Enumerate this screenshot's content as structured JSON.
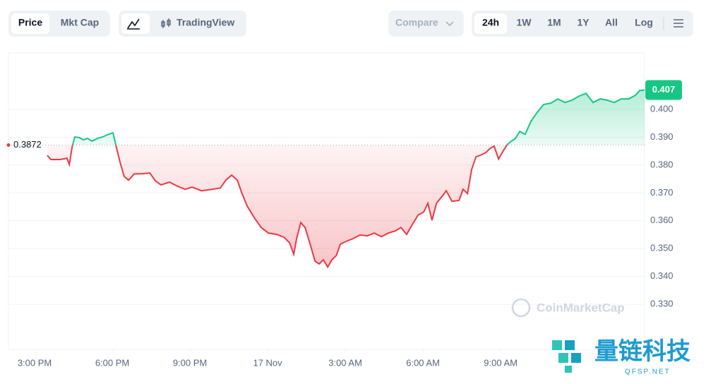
{
  "toolbar": {
    "price": "Price",
    "mkt_cap": "Mkt Cap",
    "trading_view": "TradingView",
    "compare": "Compare",
    "ranges": [
      "24h",
      "1W",
      "1M",
      "1Y",
      "All"
    ],
    "log": "Log"
  },
  "watermark": "CoinMarketCap",
  "overlay": {
    "brand": "量链科技",
    "site": "QFSP.NET"
  },
  "chart_data": {
    "type": "line",
    "x": [
      15.49,
      15.63,
      15.98,
      16.25,
      16.34,
      16.45,
      16.55,
      16.72,
      16.88,
      17.05,
      17.21,
      17.43,
      17.62,
      17.81,
      18.03,
      18.14,
      18.3,
      18.46,
      18.63,
      18.85,
      19.12,
      19.45,
      19.66,
      19.88,
      20.21,
      20.48,
      20.81,
      21.08,
      21.44,
      21.85,
      22.17,
      22.39,
      22.61,
      22.83,
      22.99,
      23.21,
      23.48,
      23.75,
      24.03,
      24.35,
      24.63,
      24.85,
      25.01,
      25.12,
      25.28,
      25.45,
      25.66,
      25.83,
      25.99,
      26.15,
      26.32,
      26.48,
      26.65,
      26.81,
      27.03,
      27.3,
      27.57,
      27.85,
      28.12,
      28.39,
      28.66,
      28.94,
      29.15,
      29.37,
      29.59,
      29.81,
      30.03,
      30.19,
      30.35,
      30.52,
      30.74,
      30.9,
      31.12,
      31.39,
      31.55,
      31.72,
      31.88,
      32.05,
      32.21,
      32.43,
      32.59,
      32.75,
      32.92,
      33.08,
      33.25,
      33.41,
      33.57,
      33.74,
      33.95,
      34.17,
      34.39,
      34.66,
      34.94,
      35.21,
      35.48,
      35.75,
      36.03,
      36.3,
      36.57,
      36.85,
      37.12,
      37.39,
      37.66,
      37.94,
      38.21,
      38.37,
      38.56
    ],
    "values": [
      0.3835,
      0.382,
      0.382,
      0.3825,
      0.3802,
      0.3866,
      0.3901,
      0.3899,
      0.3891,
      0.3896,
      0.3886,
      0.3896,
      0.3901,
      0.3909,
      0.3916,
      0.3871,
      0.381,
      0.3759,
      0.3746,
      0.3769,
      0.3769,
      0.3772,
      0.3744,
      0.3729,
      0.3739,
      0.3726,
      0.3713,
      0.3721,
      0.3708,
      0.3713,
      0.3718,
      0.3746,
      0.3764,
      0.3746,
      0.3703,
      0.3653,
      0.3612,
      0.3576,
      0.3556,
      0.3551,
      0.3541,
      0.3521,
      0.348,
      0.3536,
      0.3594,
      0.3576,
      0.3511,
      0.3455,
      0.3445,
      0.346,
      0.3434,
      0.346,
      0.3475,
      0.3516,
      0.3526,
      0.3536,
      0.3549,
      0.3546,
      0.3556,
      0.3543,
      0.3556,
      0.3564,
      0.3576,
      0.3551,
      0.3587,
      0.362,
      0.3632,
      0.3663,
      0.3602,
      0.3663,
      0.3688,
      0.3708,
      0.367,
      0.3673,
      0.3713,
      0.3698,
      0.3784,
      0.383,
      0.3835,
      0.3845,
      0.386,
      0.3868,
      0.3822,
      0.3848,
      0.3873,
      0.3886,
      0.3896,
      0.3921,
      0.3911,
      0.3957,
      0.3987,
      0.4018,
      0.4023,
      0.4038,
      0.4025,
      0.4033,
      0.4048,
      0.4058,
      0.4025,
      0.4038,
      0.4033,
      0.4025,
      0.4038,
      0.4038,
      0.4051,
      0.4068,
      0.407
    ],
    "baseline": 0.3872,
    "current_price": 0.407,
    "up_color": "#16c784",
    "down_color": "#ea3943",
    "xlim": [
      13.99,
      38.56
    ],
    "xticks": [
      {
        "value": 15,
        "label": "3:00 PM"
      },
      {
        "value": 18,
        "label": "6:00 PM"
      },
      {
        "value": 21,
        "label": "9:00 PM"
      },
      {
        "value": 24,
        "label": "17 Nov"
      },
      {
        "value": 27,
        "label": "3:00 AM"
      },
      {
        "value": 30,
        "label": "6:00 AM"
      },
      {
        "value": 33,
        "label": "9:00 AM"
      }
    ],
    "ylim": [
      0.3138,
      0.4203
    ],
    "yticks": [
      {
        "value": 0.33,
        "label": "0.330"
      },
      {
        "value": 0.34,
        "label": "0.340"
      },
      {
        "value": 0.35,
        "label": "0.350"
      },
      {
        "value": 0.36,
        "label": "0.360"
      },
      {
        "value": 0.37,
        "label": "0.370"
      },
      {
        "value": 0.38,
        "label": "0.380"
      },
      {
        "value": 0.39,
        "label": "0.390"
      },
      {
        "value": 0.4,
        "label": "0.400"
      }
    ],
    "grid": true
  }
}
